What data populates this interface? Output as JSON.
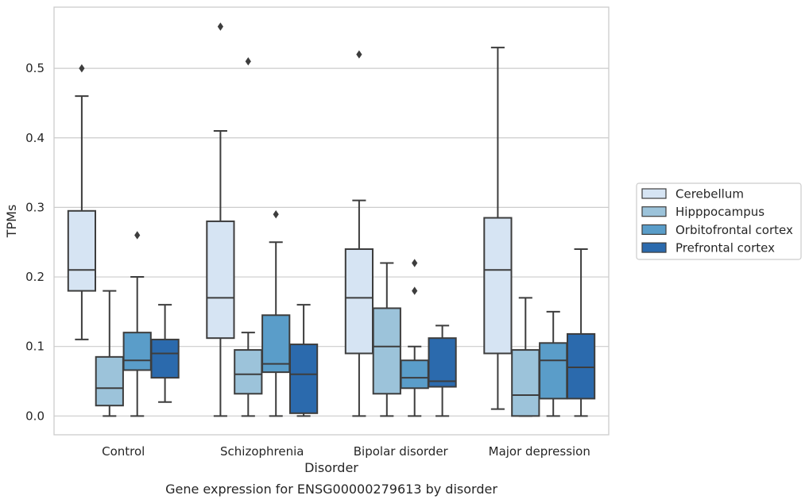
{
  "chart_data": {
    "type": "box",
    "title": "",
    "caption": "Gene expression for ENSG00000279613 by disorder",
    "xlabel": "Disorder",
    "ylabel": "TPMs",
    "ylim": [
      -0.027,
      0.588
    ],
    "yticks": [
      0.0,
      0.1,
      0.2,
      0.3,
      0.4,
      0.5
    ],
    "ytick_labels": [
      "0.0",
      "0.1",
      "0.2",
      "0.3",
      "0.4",
      "0.5"
    ],
    "grid": "horizontal",
    "legend_position": "right",
    "categories": [
      "Control",
      "Schizophrenia",
      "Bipolar disorder",
      "Major depression"
    ],
    "series": [
      {
        "name": "Cerebellum",
        "color": "#d6e4f3",
        "boxes": [
          {
            "whislo": 0.11,
            "q1": 0.18,
            "med": 0.21,
            "q3": 0.295,
            "whishi": 0.46,
            "fliers": [
              0.5
            ]
          },
          {
            "whislo": 0.0,
            "q1": 0.112,
            "med": 0.17,
            "q3": 0.28,
            "whishi": 0.41,
            "fliers": [
              0.56
            ]
          },
          {
            "whislo": 0.0,
            "q1": 0.09,
            "med": 0.17,
            "q3": 0.24,
            "whishi": 0.31,
            "fliers": [
              0.52
            ]
          },
          {
            "whislo": 0.01,
            "q1": 0.09,
            "med": 0.21,
            "q3": 0.285,
            "whishi": 0.53,
            "fliers": []
          }
        ]
      },
      {
        "name": "Hipppocampus",
        "color": "#9cc3da",
        "boxes": [
          {
            "whislo": 0.0,
            "q1": 0.015,
            "med": 0.04,
            "q3": 0.085,
            "whishi": 0.18,
            "fliers": []
          },
          {
            "whislo": 0.0,
            "q1": 0.032,
            "med": 0.06,
            "q3": 0.095,
            "whishi": 0.12,
            "fliers": [
              0.51
            ]
          },
          {
            "whislo": 0.0,
            "q1": 0.032,
            "med": 0.1,
            "q3": 0.155,
            "whishi": 0.22,
            "fliers": []
          },
          {
            "whislo": 0.0,
            "q1": 0.0,
            "med": 0.03,
            "q3": 0.095,
            "whishi": 0.17,
            "fliers": []
          }
        ]
      },
      {
        "name": "Orbitofrontal cortex",
        "color": "#5a9dc9",
        "boxes": [
          {
            "whislo": 0.0,
            "q1": 0.066,
            "med": 0.08,
            "q3": 0.12,
            "whishi": 0.2,
            "fliers": [
              0.26
            ]
          },
          {
            "whislo": 0.0,
            "q1": 0.063,
            "med": 0.075,
            "q3": 0.145,
            "whishi": 0.25,
            "fliers": [
              0.29
            ]
          },
          {
            "whislo": 0.0,
            "q1": 0.04,
            "med": 0.055,
            "q3": 0.08,
            "whishi": 0.1,
            "fliers": [
              0.18,
              0.22
            ]
          },
          {
            "whislo": 0.0,
            "q1": 0.025,
            "med": 0.08,
            "q3": 0.105,
            "whishi": 0.15,
            "fliers": []
          }
        ]
      },
      {
        "name": "Prefrontal cortex",
        "color": "#2b6aad",
        "boxes": [
          {
            "whislo": 0.02,
            "q1": 0.055,
            "med": 0.09,
            "q3": 0.11,
            "whishi": 0.16,
            "fliers": []
          },
          {
            "whislo": 0.0,
            "q1": 0.004,
            "med": 0.06,
            "q3": 0.103,
            "whishi": 0.16,
            "fliers": []
          },
          {
            "whislo": 0.0,
            "q1": 0.042,
            "med": 0.05,
            "q3": 0.112,
            "whishi": 0.13,
            "fliers": []
          },
          {
            "whislo": 0.0,
            "q1": 0.025,
            "med": 0.07,
            "q3": 0.118,
            "whishi": 0.24,
            "fliers": []
          }
        ]
      }
    ]
  }
}
